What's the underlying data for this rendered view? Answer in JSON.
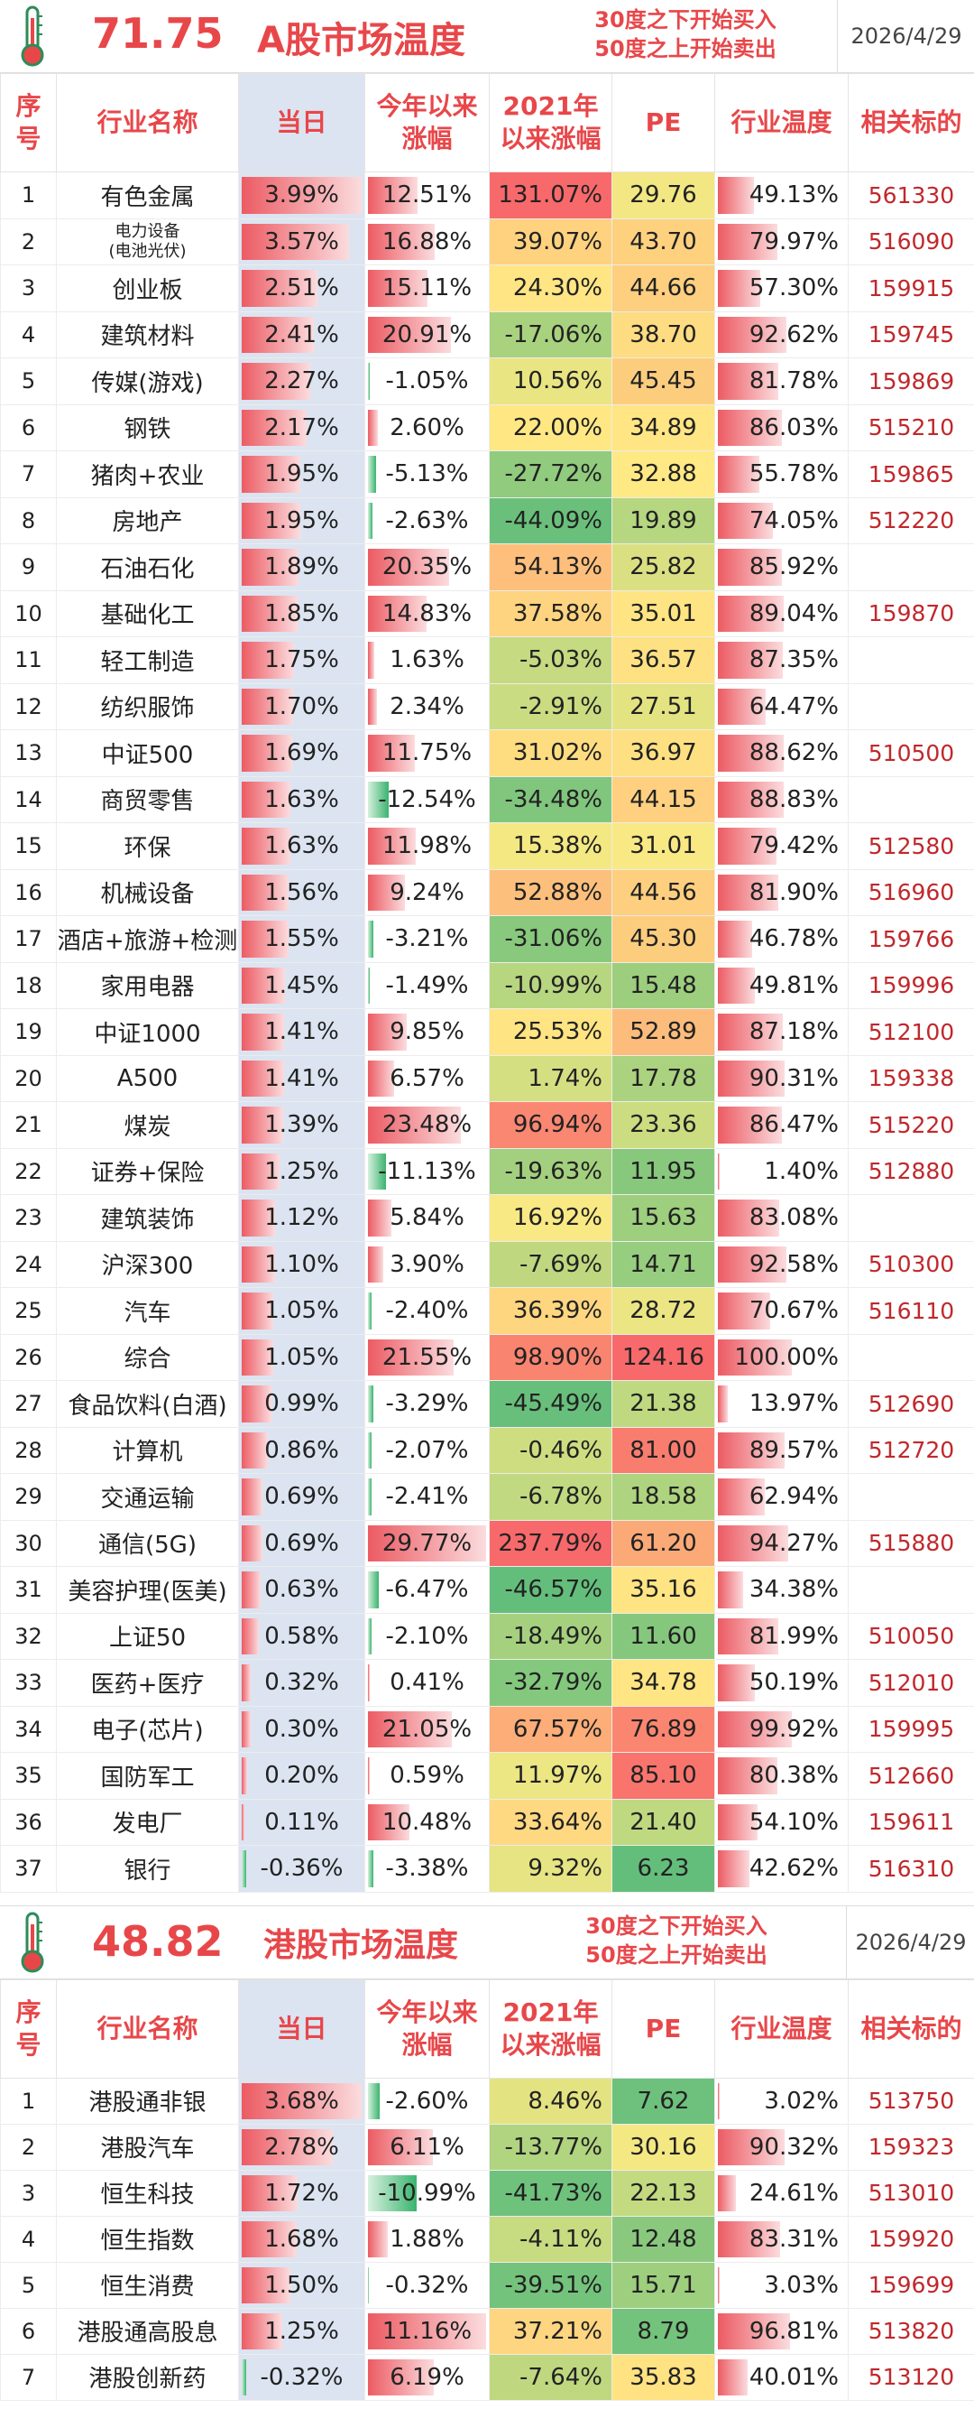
{
  "a_share": {
    "temperature": "71.75",
    "title": "A股市场温度",
    "rule_line1": "30度之下开始买入",
    "rule_line2": "50度之上开始卖出",
    "date": "2026/4/29",
    "headers": {
      "seq": [
        "序",
        "号"
      ],
      "name": "行业名称",
      "today": "当日",
      "ytd": [
        "今年以来",
        "涨幅"
      ],
      "since2021": [
        "2021年",
        "以来涨幅"
      ],
      "pe": "PE",
      "temp": "行业温度",
      "code": "相关标的"
    },
    "rows": [
      {
        "seq": "1",
        "name": "有色金属",
        "today": "3.99%",
        "ytd": "12.51%",
        "since2021": "131.07%",
        "pe": "29.76",
        "temp": "49.13%",
        "code": "561330"
      },
      {
        "seq": "2",
        "name": "电力设备\n(电池光伏)",
        "today": "3.57%",
        "ytd": "16.88%",
        "since2021": "39.07%",
        "pe": "43.70",
        "temp": "79.97%",
        "code": "516090"
      },
      {
        "seq": "3",
        "name": "创业板",
        "today": "2.51%",
        "ytd": "15.11%",
        "since2021": "24.30%",
        "pe": "44.66",
        "temp": "57.30%",
        "code": "159915"
      },
      {
        "seq": "4",
        "name": "建筑材料",
        "today": "2.41%",
        "ytd": "20.91%",
        "since2021": "-17.06%",
        "pe": "38.70",
        "temp": "92.62%",
        "code": "159745"
      },
      {
        "seq": "5",
        "name": "传媒(游戏)",
        "today": "2.27%",
        "ytd": "-1.05%",
        "since2021": "10.56%",
        "pe": "45.45",
        "temp": "81.78%",
        "code": "159869"
      },
      {
        "seq": "6",
        "name": "钢铁",
        "today": "2.17%",
        "ytd": "2.60%",
        "since2021": "22.00%",
        "pe": "34.89",
        "temp": "86.03%",
        "code": "515210"
      },
      {
        "seq": "7",
        "name": "猪肉+农业",
        "today": "1.95%",
        "ytd": "-5.13%",
        "since2021": "-27.72%",
        "pe": "32.88",
        "temp": "55.78%",
        "code": "159865"
      },
      {
        "seq": "8",
        "name": "房地产",
        "today": "1.95%",
        "ytd": "-2.63%",
        "since2021": "-44.09%",
        "pe": "19.89",
        "temp": "74.05%",
        "code": "512220"
      },
      {
        "seq": "9",
        "name": "石油石化",
        "today": "1.89%",
        "ytd": "20.35%",
        "since2021": "54.13%",
        "pe": "25.82",
        "temp": "85.92%",
        "code": ""
      },
      {
        "seq": "10",
        "name": "基础化工",
        "today": "1.85%",
        "ytd": "14.83%",
        "since2021": "37.58%",
        "pe": "35.01",
        "temp": "89.04%",
        "code": "159870"
      },
      {
        "seq": "11",
        "name": "轻工制造",
        "today": "1.75%",
        "ytd": "1.63%",
        "since2021": "-5.03%",
        "pe": "36.57",
        "temp": "87.35%",
        "code": ""
      },
      {
        "seq": "12",
        "name": "纺织服饰",
        "today": "1.70%",
        "ytd": "2.34%",
        "since2021": "-2.91%",
        "pe": "27.51",
        "temp": "64.47%",
        "code": ""
      },
      {
        "seq": "13",
        "name": "中证500",
        "today": "1.69%",
        "ytd": "11.75%",
        "since2021": "31.02%",
        "pe": "36.97",
        "temp": "88.62%",
        "code": "510500"
      },
      {
        "seq": "14",
        "name": "商贸零售",
        "today": "1.63%",
        "ytd": "-12.54%",
        "since2021": "-34.48%",
        "pe": "44.15",
        "temp": "88.83%",
        "code": ""
      },
      {
        "seq": "15",
        "name": "环保",
        "today": "1.63%",
        "ytd": "11.98%",
        "since2021": "15.38%",
        "pe": "31.01",
        "temp": "79.42%",
        "code": "512580"
      },
      {
        "seq": "16",
        "name": "机械设备",
        "today": "1.56%",
        "ytd": "9.24%",
        "since2021": "52.88%",
        "pe": "44.56",
        "temp": "81.90%",
        "code": "516960"
      },
      {
        "seq": "17",
        "name": "酒店+旅游+检测",
        "today": "1.55%",
        "ytd": "-3.21%",
        "since2021": "-31.06%",
        "pe": "45.30",
        "temp": "46.78%",
        "code": "159766"
      },
      {
        "seq": "18",
        "name": "家用电器",
        "today": "1.45%",
        "ytd": "-1.49%",
        "since2021": "-10.99%",
        "pe": "15.48",
        "temp": "49.81%",
        "code": "159996"
      },
      {
        "seq": "19",
        "name": "中证1000",
        "today": "1.41%",
        "ytd": "9.85%",
        "since2021": "25.53%",
        "pe": "52.89",
        "temp": "87.18%",
        "code": "512100"
      },
      {
        "seq": "20",
        "name": "A500",
        "today": "1.41%",
        "ytd": "6.57%",
        "since2021": "1.74%",
        "pe": "17.78",
        "temp": "90.31%",
        "code": "159338"
      },
      {
        "seq": "21",
        "name": "煤炭",
        "today": "1.39%",
        "ytd": "23.48%",
        "since2021": "96.94%",
        "pe": "23.36",
        "temp": "86.47%",
        "code": "515220"
      },
      {
        "seq": "22",
        "name": "证券+保险",
        "today": "1.25%",
        "ytd": "-11.13%",
        "since2021": "-19.63%",
        "pe": "11.95",
        "temp": "1.40%",
        "code": "512880"
      },
      {
        "seq": "23",
        "name": "建筑装饰",
        "today": "1.12%",
        "ytd": "5.84%",
        "since2021": "16.92%",
        "pe": "15.63",
        "temp": "83.08%",
        "code": ""
      },
      {
        "seq": "24",
        "name": "沪深300",
        "today": "1.10%",
        "ytd": "3.90%",
        "since2021": "-7.69%",
        "pe": "14.71",
        "temp": "92.58%",
        "code": "510300"
      },
      {
        "seq": "25",
        "name": "汽车",
        "today": "1.05%",
        "ytd": "-2.40%",
        "since2021": "36.39%",
        "pe": "28.72",
        "temp": "70.67%",
        "code": "516110"
      },
      {
        "seq": "26",
        "name": "综合",
        "today": "1.05%",
        "ytd": "21.55%",
        "since2021": "98.90%",
        "pe": "124.16",
        "temp": "100.00%",
        "code": ""
      },
      {
        "seq": "27",
        "name": "食品饮料(白酒)",
        "today": "0.99%",
        "ytd": "-3.29%",
        "since2021": "-45.49%",
        "pe": "21.38",
        "temp": "13.97%",
        "code": "512690"
      },
      {
        "seq": "28",
        "name": "计算机",
        "today": "0.86%",
        "ytd": "-2.07%",
        "since2021": "-0.46%",
        "pe": "81.00",
        "temp": "89.57%",
        "code": "512720"
      },
      {
        "seq": "29",
        "name": "交通运输",
        "today": "0.69%",
        "ytd": "-2.41%",
        "since2021": "-6.78%",
        "pe": "18.58",
        "temp": "62.94%",
        "code": ""
      },
      {
        "seq": "30",
        "name": "通信(5G)",
        "today": "0.69%",
        "ytd": "29.77%",
        "since2021": "237.79%",
        "pe": "61.20",
        "temp": "94.27%",
        "code": "515880"
      },
      {
        "seq": "31",
        "name": "美容护理(医美)",
        "today": "0.63%",
        "ytd": "-6.47%",
        "since2021": "-46.57%",
        "pe": "35.16",
        "temp": "34.38%",
        "code": ""
      },
      {
        "seq": "32",
        "name": "上证50",
        "today": "0.58%",
        "ytd": "-2.10%",
        "since2021": "-18.49%",
        "pe": "11.60",
        "temp": "81.99%",
        "code": "510050"
      },
      {
        "seq": "33",
        "name": "医药+医疗",
        "today": "0.32%",
        "ytd": "0.41%",
        "since2021": "-32.79%",
        "pe": "34.78",
        "temp": "50.19%",
        "code": "512010"
      },
      {
        "seq": "34",
        "name": "电子(芯片)",
        "today": "0.30%",
        "ytd": "21.05%",
        "since2021": "67.57%",
        "pe": "76.89",
        "temp": "99.92%",
        "code": "159995"
      },
      {
        "seq": "35",
        "name": "国防军工",
        "today": "0.20%",
        "ytd": "0.59%",
        "since2021": "11.97%",
        "pe": "85.10",
        "temp": "80.38%",
        "code": "512660"
      },
      {
        "seq": "36",
        "name": "发电厂",
        "today": "0.11%",
        "ytd": "10.48%",
        "since2021": "33.64%",
        "pe": "21.40",
        "temp": "54.10%",
        "code": "159611"
      },
      {
        "seq": "37",
        "name": "银行",
        "today": "-0.36%",
        "ytd": "-3.38%",
        "since2021": "9.32%",
        "pe": "6.23",
        "temp": "42.62%",
        "code": "516310"
      }
    ]
  },
  "hk_share": {
    "temperature": "48.82",
    "title": "港股市场温度",
    "rule_line1": "30度之下开始买入",
    "rule_line2": "50度之上开始卖出",
    "date": "2026/4/29",
    "headers": {
      "seq": [
        "序",
        "号"
      ],
      "name": "行业名称",
      "today": "当日",
      "ytd": [
        "今年以来",
        "涨幅"
      ],
      "since2021": [
        "2021年",
        "以来涨幅"
      ],
      "pe": "PE",
      "temp": "行业温度",
      "code": "相关标的"
    },
    "rows": [
      {
        "seq": "1",
        "name": "港股通非银",
        "today": "3.68%",
        "ytd": "-2.60%",
        "since2021": "8.46%",
        "pe": "7.62",
        "temp": "3.02%",
        "code": "513750"
      },
      {
        "seq": "2",
        "name": "港股汽车",
        "today": "2.78%",
        "ytd": "6.11%",
        "since2021": "-13.77%",
        "pe": "30.16",
        "temp": "90.32%",
        "code": "159323"
      },
      {
        "seq": "3",
        "name": "恒生科技",
        "today": "1.72%",
        "ytd": "-10.99%",
        "since2021": "-41.73%",
        "pe": "22.13",
        "temp": "24.61%",
        "code": "513010"
      },
      {
        "seq": "4",
        "name": "恒生指数",
        "today": "1.68%",
        "ytd": "1.88%",
        "since2021": "-4.11%",
        "pe": "12.48",
        "temp": "83.31%",
        "code": "159920"
      },
      {
        "seq": "5",
        "name": "恒生消费",
        "today": "1.50%",
        "ytd": "-0.32%",
        "since2021": "-39.51%",
        "pe": "15.71",
        "temp": "3.03%",
        "code": "159699"
      },
      {
        "seq": "6",
        "name": "港股通高股息",
        "today": "1.25%",
        "ytd": "11.16%",
        "since2021": "37.21%",
        "pe": "8.79",
        "temp": "96.81%",
        "code": "513820"
      },
      {
        "seq": "7",
        "name": "港股创新药",
        "today": "-0.32%",
        "ytd": "6.19%",
        "since2021": "-7.64%",
        "pe": "35.83",
        "temp": "40.01%",
        "code": "513120"
      }
    ]
  },
  "colors": {
    "accent": "#e8474a",
    "code": "#c0282c",
    "today_bg": "#dce4f1"
  }
}
